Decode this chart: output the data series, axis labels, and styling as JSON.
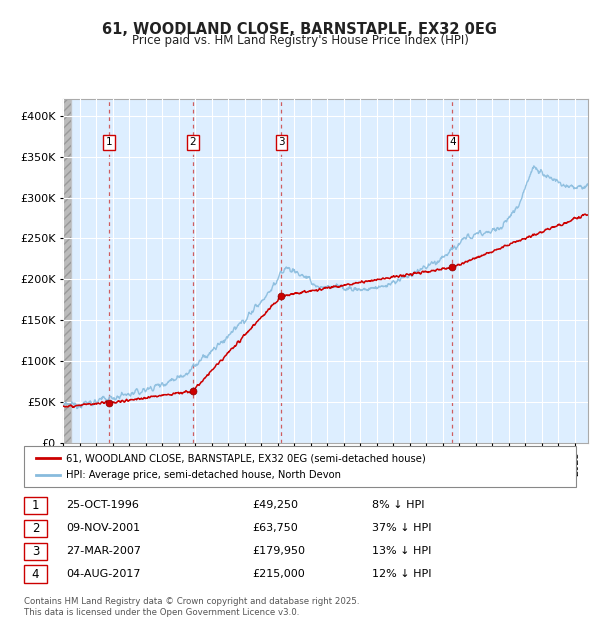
{
  "title": "61, WOODLAND CLOSE, BARNSTAPLE, EX32 0EG",
  "subtitle": "Price paid vs. HM Land Registry's House Price Index (HPI)",
  "legend_line1": "61, WOODLAND CLOSE, BARNSTAPLE, EX32 0EG (semi-detached house)",
  "legend_line2": "HPI: Average price, semi-detached house, North Devon",
  "footer": "Contains HM Land Registry data © Crown copyright and database right 2025.\nThis data is licensed under the Open Government Licence v3.0.",
  "sales": [
    {
      "num": 1,
      "date": "25-OCT-1996",
      "price": 49250,
      "pct": "8%",
      "x_year": 1996.81
    },
    {
      "num": 2,
      "date": "09-NOV-2001",
      "price": 63750,
      "pct": "37%",
      "x_year": 2001.86
    },
    {
      "num": 3,
      "date": "27-MAR-2007",
      "price": 179950,
      "pct": "13%",
      "x_year": 2007.23
    },
    {
      "num": 4,
      "date": "04-AUG-2017",
      "price": 215000,
      "pct": "12%",
      "x_year": 2017.59
    }
  ],
  "plot_color_red": "#cc0000",
  "plot_color_blue": "#88bbdd",
  "bg_color": "#ddeeff",
  "grid_color": "#ffffff",
  "dashed_color": "#dd4444",
  "ylim": [
    0,
    420000
  ],
  "xlim_start": 1994.0,
  "xlim_end": 2025.8,
  "yticks": [
    0,
    50000,
    100000,
    150000,
    200000,
    250000,
    300000,
    350000,
    400000
  ]
}
